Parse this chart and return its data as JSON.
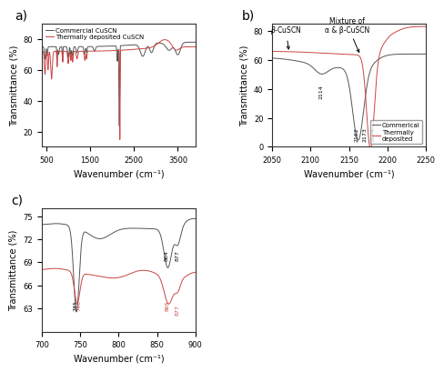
{
  "panel_a": {
    "xlabel": "Wavenumber (cm⁻¹)",
    "ylabel": "Transmittance (%)",
    "xlim": [
      400,
      3900
    ],
    "ylim": [
      10,
      90
    ],
    "yticks": [
      20,
      40,
      60,
      80
    ],
    "xticks": [
      500,
      1500,
      2500,
      3500
    ],
    "label": "a)",
    "legend": [
      "Commercial CuSCN",
      "Thermally deposited CuSCN"
    ],
    "line_colors": [
      "#555555",
      "#cc4444"
    ]
  },
  "panel_b": {
    "xlabel": "Wavenumber (cm⁻¹)",
    "ylabel": "Transmittance (%)",
    "xlim": [
      2050,
      2250
    ],
    "ylim": [
      0,
      85
    ],
    "yticks": [
      0,
      20,
      40,
      60,
      80
    ],
    "xticks": [
      2050,
      2100,
      2150,
      2200,
      2250
    ],
    "label": "b)",
    "legend": [
      "Commerical",
      "Thermally\ndeposited"
    ],
    "line_colors": [
      "#555555",
      "#cc4444"
    ]
  },
  "panel_c": {
    "xlabel": "Wavenumber (cm⁻¹)",
    "ylabel": "Transmittance (%)",
    "xlim": [
      700,
      900
    ],
    "ylim": [
      60,
      76
    ],
    "yticks": [
      63,
      66,
      69,
      72,
      75
    ],
    "xticks": [
      700,
      750,
      800,
      850,
      900
    ],
    "label": "c)",
    "line_colors": [
      "#555555",
      "#cc4444"
    ]
  },
  "bg_color": "#ffffff"
}
